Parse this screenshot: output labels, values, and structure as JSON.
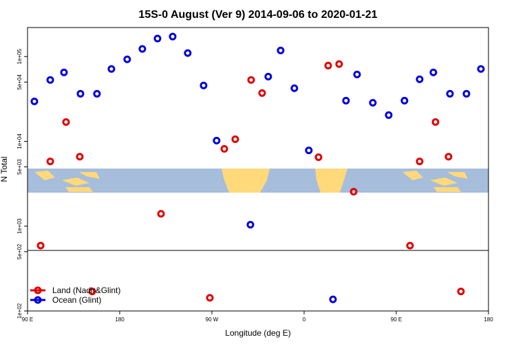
{
  "chart_data": {
    "type": "scatter",
    "title": "15S-0 August (Ver 9)   2014-09-06 to 2020-01-21",
    "x_label": "Longitude (deg E)",
    "y_label": "N Total",
    "xlim": [
      90,
      540
    ],
    "xticks": [
      {
        "value": 90,
        "label": "90 E"
      },
      180,
      {
        "value": 270,
        "label": "90 W"
      },
      {
        "value": 360,
        "label": "0"
      },
      {
        "value": 450,
        "label": "90 E"
      },
      {
        "value": 540,
        "label": "180"
      }
    ],
    "ylim": [
      100,
      220000
    ],
    "log_y": true,
    "yticks": [
      {
        "value": 100,
        "label": "1e+02"
      },
      {
        "value": 500,
        "label": "5e+02"
      },
      {
        "value": 1000,
        "label": "1e+03"
      },
      {
        "value": 5000,
        "label": "5e+03"
      },
      {
        "value": 10000,
        "label": "1e+04"
      },
      {
        "value": 50000,
        "label": "5e+04"
      },
      {
        "value": 100000,
        "label": "1e+05"
      }
    ],
    "legend": "bottom-left",
    "series": [
      {
        "name": "Land (Nadir&Glint)",
        "color": "#e00000",
        "x": [
          102.8,
          112.2,
          127.6,
          141.0,
          153.1,
          220.3,
          268.0,
          282.1,
          292.8,
          308.3,
          319.0,
          374.1,
          383.5,
          394.2,
          408.4,
          463.4,
          472.8,
          488.3,
          501.0,
          513.1
        ],
        "values": [
          590,
          5800,
          16900,
          6600,
          170,
          1400,
          143,
          8150,
          10600,
          53000,
          37100,
          6500,
          78300,
          81500,
          2550,
          590,
          5800,
          16900,
          6600,
          170
        ]
      },
      {
        "name": "Ocean (Glint)",
        "color": "#0000dd",
        "x": [
          96.7,
          112.2,
          125.6,
          141.7,
          157.8,
          171.9,
          187.3,
          202.1,
          216.9,
          231.7,
          246.4,
          261.9,
          274.6,
          307.6,
          325.0,
          337.1,
          350.5,
          364.6,
          388.2,
          400.9,
          411.7,
          427.1,
          442.6,
          458.0,
          472.8,
          486.2,
          502.4,
          518.5,
          532.6
        ],
        "values": [
          29600,
          53000,
          65000,
          36400,
          36400,
          71400,
          92700,
          123000,
          163000,
          172000,
          110000,
          45600,
          10200,
          1040,
          58000,
          118000,
          42300,
          7830,
          137,
          30200,
          61500,
          28500,
          20400,
          30200,
          54000,
          65000,
          36400,
          36400,
          71400
        ]
      }
    ]
  }
}
